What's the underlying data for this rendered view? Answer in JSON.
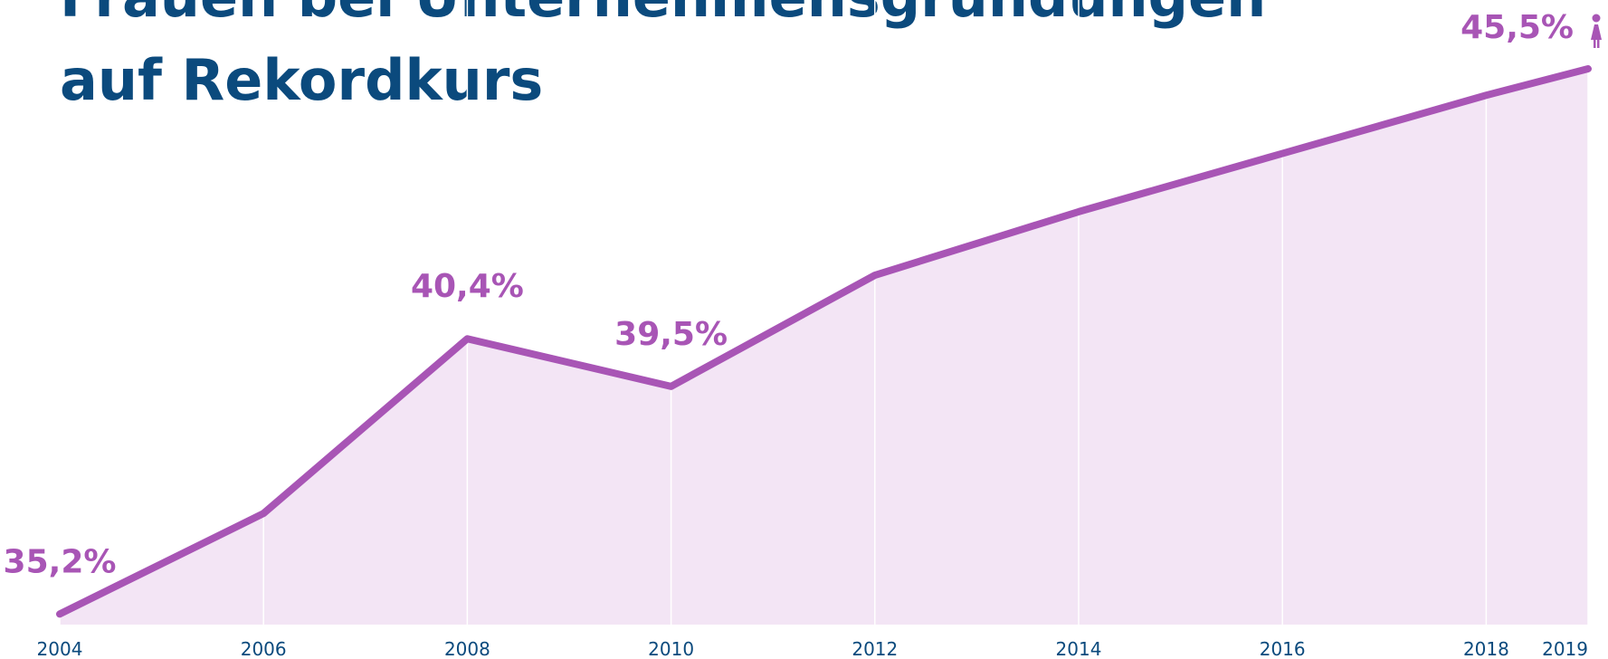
{
  "chart_data": {
    "type": "line",
    "title": [
      "Frauen bei Unternehmensgründungen",
      "auf Rekordkurs"
    ],
    "x": [
      2004,
      2006,
      2008,
      2010,
      2012,
      2014,
      2016,
      2018,
      2019
    ],
    "series": [
      {
        "name": null,
        "color": "#a855b5",
        "values": [
          35.2,
          37.1,
          40.4,
          39.5,
          41.6,
          42.8,
          43.9,
          45.0,
          45.5
        ],
        "value_labels": [
          "35,2%",
          null,
          "40,4%",
          "39,5%",
          null,
          null,
          null,
          null,
          "45,5%"
        ]
      }
    ],
    "area_color": "#f3e5f5",
    "xlim": [
      2004,
      2019
    ],
    "xticks": [
      2004,
      2006,
      2008,
      2010,
      2012,
      2014,
      2016,
      2018,
      2019
    ],
    "ylim": [
      35,
      46.8
    ],
    "grid": true
  }
}
